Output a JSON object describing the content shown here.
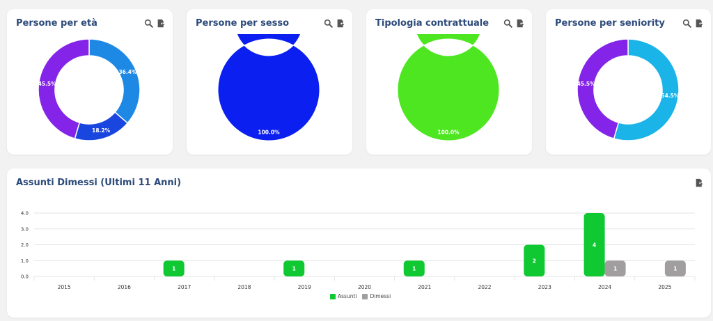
{
  "colors": {
    "accent_title": "#2c4a7a",
    "tool_icon": "#555555"
  },
  "cards": [
    {
      "title": "Persone per età",
      "slices": [
        {
          "value": 36.4,
          "label": "36.4%",
          "color": "#1e88e5"
        },
        {
          "value": 18.2,
          "label": "18.2%",
          "color": "#1a46e0"
        },
        {
          "value": 45.5,
          "label": "45.5%",
          "color": "#8424e8"
        }
      ]
    },
    {
      "title": "Persone per sesso",
      "slices": [
        {
          "value": 100.0,
          "label": "100.0%",
          "color": "#0a1ff0"
        }
      ]
    },
    {
      "title": "Tipologia contrattuale",
      "slices": [
        {
          "value": 100.0,
          "label": "100.0%",
          "color": "#4ee621"
        }
      ]
    },
    {
      "title": "Persone per seniority",
      "slices": [
        {
          "value": 54.5,
          "label": "54.5%",
          "color": "#1ab4e8"
        },
        {
          "value": 45.5,
          "label": "45.5%",
          "color": "#8424e8"
        }
      ]
    }
  ],
  "icons": {
    "search": "search-icon",
    "export": "export-icon"
  },
  "bar_chart": {
    "title": "Assunti Dimessi (Ultimi 11 Anni)"
  },
  "chart_data": {
    "type": "bar",
    "title": "Assunti Dimessi (Ultimi 11 Anni)",
    "categories": [
      "2015",
      "2016",
      "2017",
      "2018",
      "2019",
      "2020",
      "2021",
      "2022",
      "2023",
      "2024",
      "2025"
    ],
    "series": [
      {
        "name": "Assunti",
        "color": "#0fc832",
        "values": [
          0,
          0,
          1,
          0,
          1,
          0,
          1,
          0,
          2,
          4,
          0
        ]
      },
      {
        "name": "Dimessi",
        "color": "#a09e9e",
        "values": [
          0,
          0,
          0,
          0,
          0,
          0,
          0,
          0,
          0,
          1,
          1
        ]
      }
    ],
    "yticks": [
      "0.0",
      "1.0",
      "2.0",
      "3.0",
      "4.0"
    ],
    "ylim": [
      0,
      4
    ],
    "grid": true,
    "legend": "bottom-center"
  }
}
